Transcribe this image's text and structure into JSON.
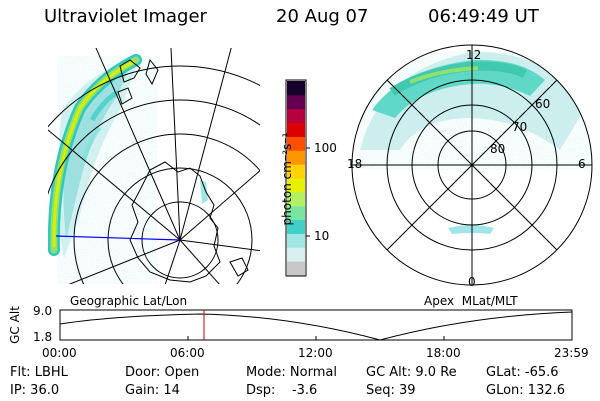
{
  "header": {
    "title": "Ultraviolet Imager",
    "date": "20 Aug 07",
    "time": "06:49:49 UT"
  },
  "colorbar": {
    "unit_label": "photon cm⁻²s⁻¹",
    "ticks": [
      "100",
      "10"
    ],
    "colors": [
      "#c8c8c8",
      "#d8f0f0",
      "#a0e6e6",
      "#40d0c8",
      "#78e6a0",
      "#b4f060",
      "#e6f000",
      "#ffd200",
      "#ff9600",
      "#ff5000",
      "#dc0000",
      "#b4003c",
      "#640050",
      "#140028"
    ]
  },
  "geo_map": {
    "label": "Geographic Lat/Lon",
    "line_color": "#0000ff"
  },
  "apex_map": {
    "label": "Apex  MLat/MLT",
    "mlt_labels": {
      "top": "12",
      "left": "18",
      "right": "6",
      "bottom": "0"
    },
    "mlat_labels": [
      "60",
      "70",
      "80"
    ]
  },
  "altitude_plot": {
    "ylabel": "GC Alt",
    "ytick_top": "9.0",
    "ytick_bottom": "1.8",
    "xticks": [
      "00:00",
      "06:00",
      "12:00",
      "18:00",
      "23:59"
    ],
    "marker_color": "#c80000"
  },
  "status": {
    "row1": [
      "Flt: LBHL",
      "Door: Open",
      "Mode: Normal",
      "GC Alt: 9.0 Re",
      "GLat: -65.6"
    ],
    "row2": [
      "IP: 36.0",
      "Gain: 14",
      "Dsp:    -3.6",
      "Seq: 39",
      "GLon: 132.6"
    ]
  }
}
